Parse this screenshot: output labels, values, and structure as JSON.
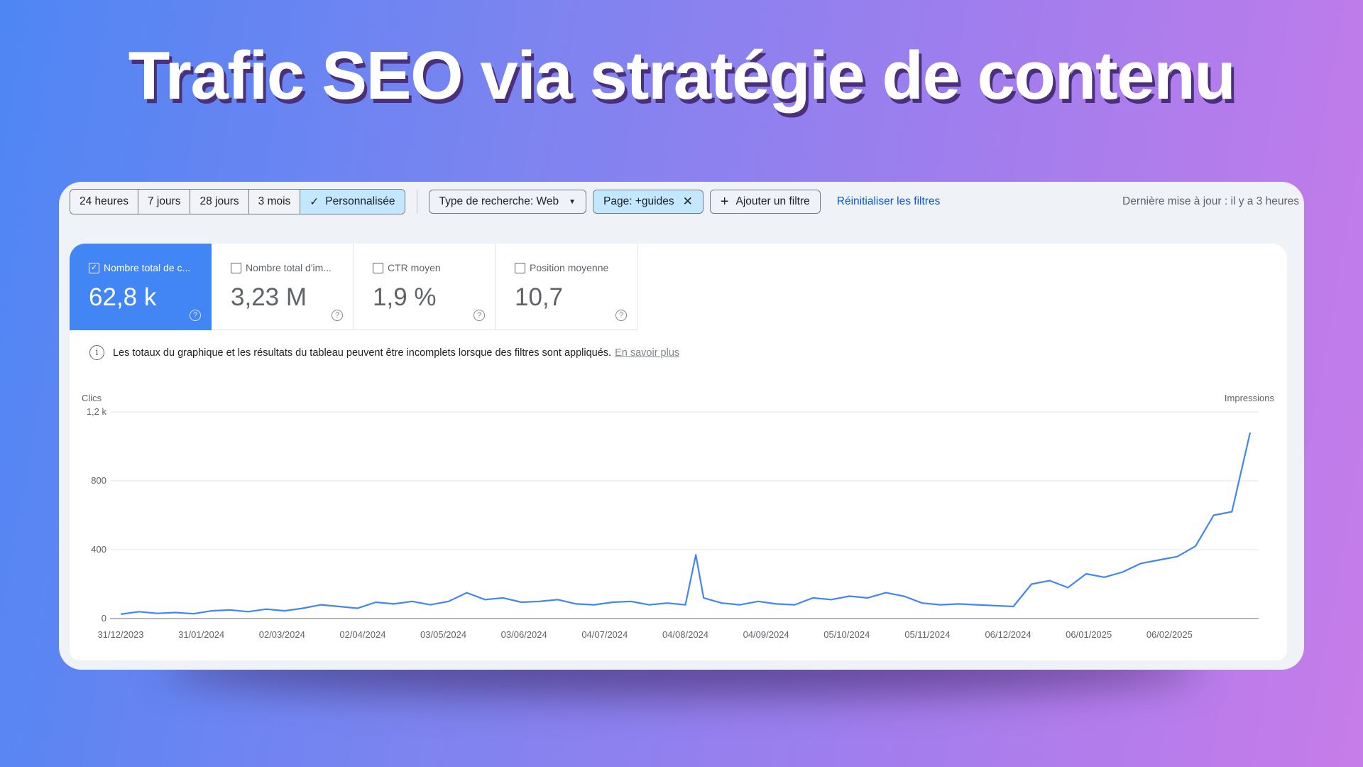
{
  "title": "Trafic SEO via stratégie de contenu",
  "toolbar": {
    "ranges": [
      "24 heures",
      "7 jours",
      "28 jours",
      "3 mois",
      "Personnalisée"
    ],
    "selected_range": "Personnalisée",
    "search_type": "Type de recherche: Web",
    "page_filter": "Page: +guides",
    "add_filter": "Ajouter un filtre",
    "reset": "Réinitialiser les filtres",
    "last_update": "Dernière mise à jour : il y a 3 heures"
  },
  "metrics": [
    {
      "label": "Nombre total de c...",
      "value": "62,8 k",
      "checked": true
    },
    {
      "label": "Nombre total d'im...",
      "value": "3,23 M",
      "checked": false
    },
    {
      "label": "CTR moyen",
      "value": "1,9 %",
      "checked": false
    },
    {
      "label": "Position moyenne",
      "value": "10,7",
      "checked": false
    }
  ],
  "info": {
    "text": "Les totaux du graphique et les résultats du tableau peuvent être incomplets lorsque des filtres sont appliqués.",
    "link": "En savoir plus"
  },
  "colors": {
    "accent": "#4285f4",
    "line": "#4285f4",
    "link": "#0b57d0",
    "chip": "#c2e7ff"
  },
  "chart_data": {
    "type": "line",
    "ylabel": "Clics",
    "y2label": "Impressions",
    "ylim": [
      0,
      1200
    ],
    "yticks": [
      "0",
      "400",
      "800",
      "1,2 k"
    ],
    "ytick_values": [
      0,
      400,
      800,
      1200
    ],
    "xticks": [
      "31/12/2023",
      "31/01/2024",
      "02/03/2024",
      "02/04/2024",
      "03/05/2024",
      "03/06/2024",
      "04/07/2024",
      "04/08/2024",
      "04/09/2024",
      "05/10/2024",
      "05/11/2024",
      "06/12/2024",
      "06/01/2025",
      "06/02/2025"
    ],
    "grid": true,
    "series": [
      {
        "x": [
          "31/12/2023",
          "07/01/2024",
          "14/01/2024",
          "21/01/2024",
          "28/01/2024",
          "04/02/2024",
          "11/02/2024",
          "18/02/2024",
          "25/02/2024",
          "03/03/2024",
          "10/03/2024",
          "17/03/2024",
          "24/03/2024",
          "31/03/2024",
          "07/04/2024",
          "14/04/2024",
          "21/04/2024",
          "28/04/2024",
          "05/05/2024",
          "12/05/2024",
          "19/05/2024",
          "26/05/2024",
          "02/06/2024",
          "09/06/2024",
          "16/06/2024",
          "23/06/2024",
          "30/06/2024",
          "07/07/2024",
          "14/07/2024",
          "21/07/2024",
          "28/07/2024",
          "04/08/2024",
          "08/08/2024",
          "11/08/2024",
          "18/08/2024",
          "25/08/2024",
          "01/09/2024",
          "08/09/2024",
          "15/09/2024",
          "22/09/2024",
          "29/09/2024",
          "06/10/2024",
          "13/10/2024",
          "20/10/2024",
          "27/10/2024",
          "03/11/2024",
          "10/11/2024",
          "17/11/2024",
          "24/11/2024",
          "01/12/2024",
          "08/12/2024",
          "15/12/2024",
          "22/12/2024",
          "29/12/2024",
          "05/01/2025",
          "12/01/2025",
          "19/01/2025",
          "26/01/2025",
          "02/02/2025",
          "09/02/2025",
          "16/02/2025",
          "23/02/2025",
          "02/03/2025",
          "09/03/2025"
        ],
        "values": [
          25,
          40,
          30,
          35,
          28,
          45,
          50,
          40,
          55,
          45,
          60,
          80,
          70,
          60,
          95,
          85,
          100,
          80,
          100,
          150,
          110,
          120,
          95,
          100,
          110,
          85,
          80,
          95,
          100,
          80,
          90,
          80,
          370,
          120,
          90,
          80,
          100,
          85,
          80,
          120,
          110,
          130,
          120,
          150,
          130,
          90,
          80,
          85,
          80,
          75,
          70,
          200,
          220,
          180,
          260,
          240,
          270,
          320,
          340,
          360,
          420,
          600,
          620,
          1080
        ]
      }
    ]
  }
}
